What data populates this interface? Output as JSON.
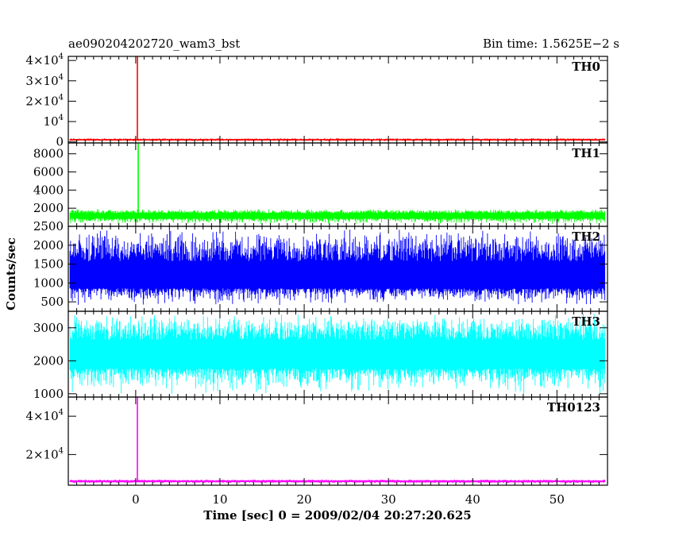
{
  "chart_data": {
    "type": "line",
    "title_left": "ae090204202720_wam3_bst",
    "title_right": "Bin time: 1.5625E−2 s",
    "xlabel": "Time [sec] 0 = 2009/02/04 20:27:20.625",
    "ylabel": "Counts/sec",
    "xlim": [
      -8,
      56
    ],
    "xticks": [
      0,
      10,
      20,
      30,
      40,
      50
    ],
    "tick_labels_x": [
      "0",
      "10",
      "20",
      "30",
      "40",
      "50"
    ],
    "data_xrange": [
      -7.8,
      55.7
    ],
    "grid": false,
    "panels": [
      {
        "name": "TH0",
        "color": "#ff0000",
        "ylim": [
          -500,
          42000
        ],
        "yticks": [
          0,
          10000,
          20000,
          30000,
          40000
        ],
        "tick_labels": [
          {
            "mant": "0",
            "exp": ""
          },
          {
            "mant": "10",
            "exp": "4"
          },
          {
            "mant": "2×10",
            "exp": "4"
          },
          {
            "mant": "3×10",
            "exp": "4"
          },
          {
            "mant": "4×10",
            "exp": "4"
          }
        ],
        "baseline": 1000,
        "noise_low": 400,
        "noise_high": 1800,
        "peak_time": 0.2,
        "peak_value": 42000
      },
      {
        "name": "TH1",
        "color": "#00ff00",
        "ylim": [
          0,
          9200
        ],
        "yticks": [
          2000,
          4000,
          6000,
          8000
        ],
        "tick_labels": [
          {
            "mant": "2000",
            "exp": ""
          },
          {
            "mant": "4000",
            "exp": ""
          },
          {
            "mant": "6000",
            "exp": ""
          },
          {
            "mant": "8000",
            "exp": ""
          }
        ],
        "baseline": 1200,
        "noise_low": 250,
        "noise_high": 1900,
        "peak_time": 0.3,
        "peak_value": 9200
      },
      {
        "name": "TH2",
        "color": "#0000ff",
        "ylim": [
          250,
          2500
        ],
        "yticks": [
          500,
          1000,
          1500,
          2000,
          2500
        ],
        "tick_labels": [
          {
            "mant": "500",
            "exp": ""
          },
          {
            "mant": "1000",
            "exp": ""
          },
          {
            "mant": "1500",
            "exp": ""
          },
          {
            "mant": "2000",
            "exp": ""
          },
          {
            "mant": "2500",
            "exp": ""
          }
        ],
        "baseline": 1100,
        "noise_low": 400,
        "noise_high": 2450
      },
      {
        "name": "TH3",
        "color": "#00ffff",
        "ylim": [
          900,
          3500
        ],
        "yticks": [
          1000,
          2000,
          3000
        ],
        "tick_labels": [
          {
            "mant": "1000",
            "exp": ""
          },
          {
            "mant": "2000",
            "exp": ""
          },
          {
            "mant": "3000",
            "exp": ""
          }
        ],
        "baseline": 2200,
        "noise_low": 950,
        "noise_high": 3450
      },
      {
        "name": "TH0123",
        "color": "#ff00ff",
        "ylim": [
          4000,
          50000
        ],
        "yticks": [
          20000,
          40000
        ],
        "tick_labels": [
          {
            "mant": "2×10",
            "exp": "4"
          },
          {
            "mant": "4×10",
            "exp": "4"
          }
        ],
        "baseline": 6000,
        "noise_low": 5000,
        "noise_high": 7000,
        "peak_time": 0.2,
        "peak_value": 50000
      }
    ]
  }
}
